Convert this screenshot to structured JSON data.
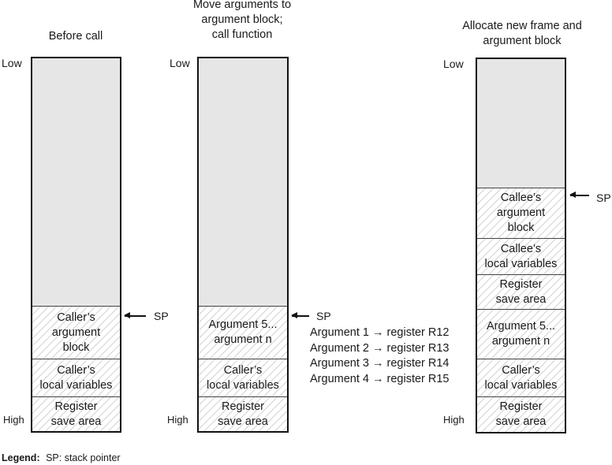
{
  "columns": [
    {
      "title": [
        "Before call"
      ],
      "low": "Low",
      "high": "High",
      "sp": "SP",
      "segments": [
        {
          "lines": [
            "Caller’s",
            "argument",
            "block"
          ]
        },
        {
          "lines": [
            "Caller’s",
            "local variables"
          ]
        },
        {
          "lines": [
            "Register",
            "save area"
          ]
        }
      ]
    },
    {
      "title": [
        "Move arguments to",
        "argument block;",
        "call function"
      ],
      "low": "Low",
      "high": "High",
      "sp": "SP",
      "segments": [
        {
          "lines": [
            "Argument 5...",
            "argument n"
          ]
        },
        {
          "lines": [
            "Caller’s",
            "local variables"
          ]
        },
        {
          "lines": [
            "Register",
            "save area"
          ]
        }
      ]
    },
    {
      "title": [
        "Allocate new frame and",
        "argument block"
      ],
      "low": "Low",
      "high": "High",
      "sp": "SP",
      "segments": [
        {
          "lines": [
            "Callee’s",
            "argument",
            "block"
          ]
        },
        {
          "lines": [
            "Callee’s",
            "local variables"
          ]
        },
        {
          "lines": [
            "Register",
            "save area"
          ]
        },
        {
          "lines": [
            "Argument 5...",
            "argument n"
          ]
        },
        {
          "lines": [
            "Caller’s",
            "local variables"
          ]
        },
        {
          "lines": [
            "Register",
            "save area"
          ]
        }
      ]
    }
  ],
  "register_mapping": [
    "Argument 1 → register R12",
    "Argument 2 → register R13",
    "Argument 3 → register R14",
    "Argument 4 → register R15"
  ],
  "legend": {
    "label": "Legend:",
    "text": "SP:  stack pointer"
  }
}
